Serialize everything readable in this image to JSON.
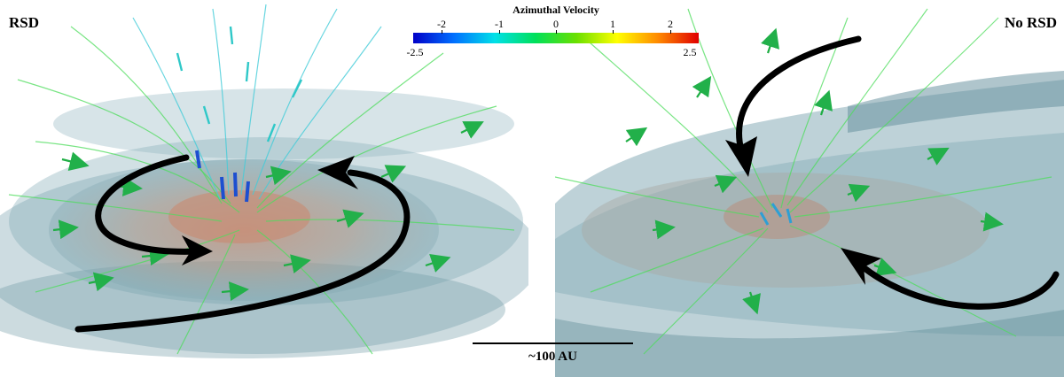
{
  "panels": {
    "left_label": "RSD",
    "right_label": "No RSD"
  },
  "colorbar": {
    "title": "Azimuthal Velocity",
    "ticks": [
      "-2",
      "-1",
      "0",
      "1",
      "2"
    ],
    "min_label": "-2.5",
    "max_label": "2.5",
    "colors": [
      "#0000c8",
      "#0070ff",
      "#00e0e8",
      "#00e05a",
      "#6ae000",
      "#ffff00",
      "#ff8a00",
      "#e00000"
    ]
  },
  "scale_bar": {
    "label": "~100 AU"
  }
}
